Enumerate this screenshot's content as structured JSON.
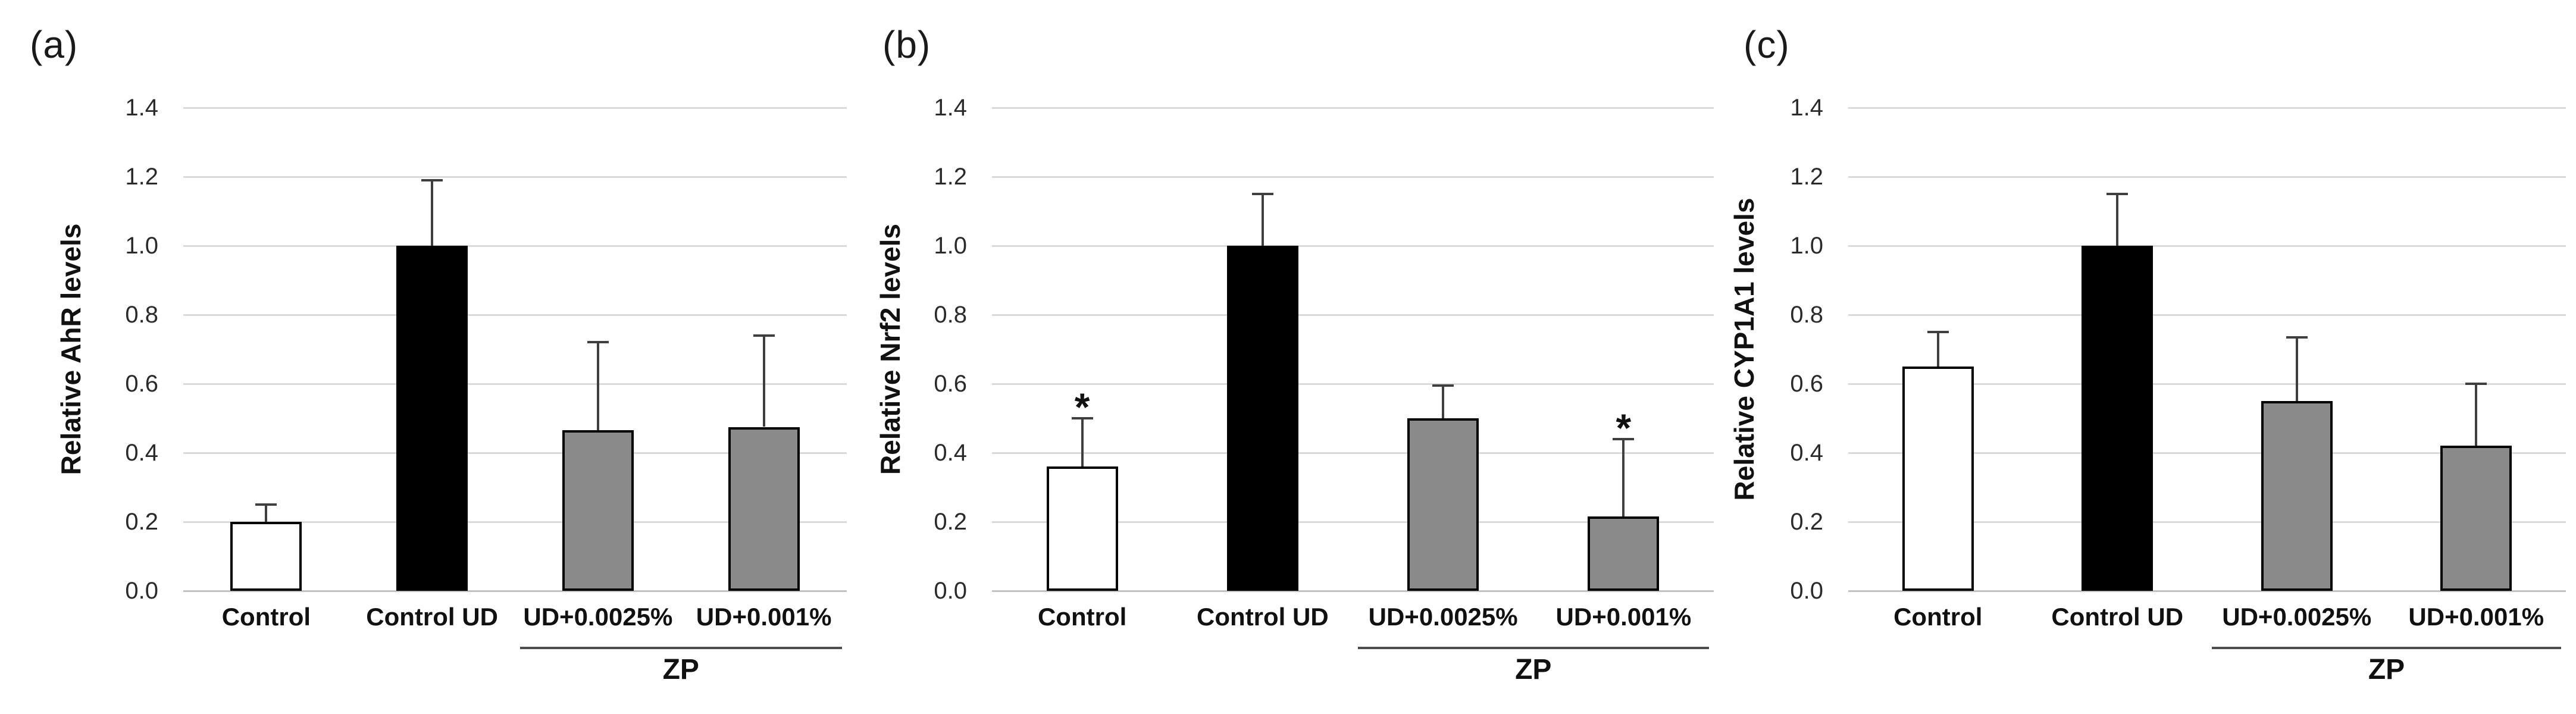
{
  "chart_data": [
    {
      "type": "bar",
      "panel_label": "(a)",
      "ylabel": "Relative AhR levels",
      "xlabel": "",
      "categories": [
        "Control",
        "Control UD",
        "UD+0.0025%",
        "UD+0.001%"
      ],
      "values": [
        0.2,
        1.0,
        0.465,
        0.475
      ],
      "errors_up": [
        0.05,
        0.19,
        0.255,
        0.265
      ],
      "significance": [
        "",
        "",
        "",
        ""
      ],
      "bar_fills": [
        "#ffffff",
        "#000000",
        "#8a8a8a",
        "#8a8a8a"
      ],
      "bar_border": "#000000",
      "ylim": [
        0,
        1.4
      ],
      "ytick_step": 0.2,
      "ytick_labels": [
        "0.0",
        "0.2",
        "0.4",
        "0.6",
        "0.8",
        "1.0",
        "1.2",
        "1.4"
      ],
      "grid": "horizontal",
      "legend": "none",
      "group_annotation": {
        "label": "ZP",
        "span": [
          2,
          3
        ]
      }
    },
    {
      "type": "bar",
      "panel_label": "(b)",
      "ylabel": "Relative Nrf2 levels",
      "xlabel": "",
      "categories": [
        "Control",
        "Control UD",
        "UD+0.0025%",
        "UD+0.001%"
      ],
      "values": [
        0.36,
        1.0,
        0.5,
        0.215
      ],
      "errors_up": [
        0.14,
        0.15,
        0.095,
        0.225
      ],
      "significance": [
        "*",
        "",
        "",
        "*"
      ],
      "bar_fills": [
        "#ffffff",
        "#000000",
        "#8a8a8a",
        "#8a8a8a"
      ],
      "bar_border": "#000000",
      "ylim": [
        0,
        1.4
      ],
      "ytick_step": 0.2,
      "ytick_labels": [
        "0.0",
        "0.2",
        "0.4",
        "0.6",
        "0.8",
        "1.0",
        "1.2",
        "1.4"
      ],
      "grid": "horizontal",
      "legend": "none",
      "group_annotation": {
        "label": "ZP",
        "span": [
          2,
          3
        ]
      }
    },
    {
      "type": "bar",
      "panel_label": "(c)",
      "ylabel": "Relative CYP1A1 levels",
      "xlabel": "",
      "categories": [
        "Control",
        "Control UD",
        "UD+0.0025%",
        "UD+0.001%"
      ],
      "values": [
        0.65,
        1.0,
        0.55,
        0.42
      ],
      "errors_up": [
        0.1,
        0.15,
        0.185,
        0.18
      ],
      "significance": [
        "",
        "",
        "",
        ""
      ],
      "bar_fills": [
        "#ffffff",
        "#000000",
        "#8a8a8a",
        "#8a8a8a"
      ],
      "bar_border": "#000000",
      "ylim": [
        0,
        1.4
      ],
      "ytick_step": 0.2,
      "ytick_labels": [
        "0.0",
        "0.2",
        "0.4",
        "0.6",
        "0.8",
        "1.0",
        "1.2",
        "1.4"
      ],
      "grid": "horizontal",
      "legend": "none",
      "group_annotation": {
        "label": "ZP",
        "span": [
          2,
          3
        ]
      }
    }
  ]
}
